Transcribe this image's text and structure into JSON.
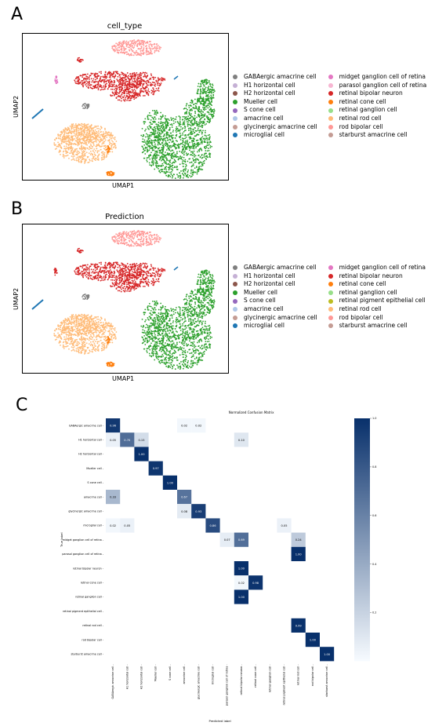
{
  "panels": {
    "a": {
      "letter": "A",
      "title": "cell_type",
      "xlabel": "UMAP1",
      "ylabel": "UMAP2"
    },
    "b": {
      "letter": "B",
      "title": "Prediction",
      "xlabel": "UMAP1",
      "ylabel": "UMAP2"
    },
    "c": {
      "letter": "C"
    }
  },
  "legend_a": [
    {
      "label": "GABAergic amacrine cell",
      "color": "#7f7f7f"
    },
    {
      "label": "H1 horizontal cell",
      "color": "#c5b0d5"
    },
    {
      "label": "H2 horizontal cell",
      "color": "#8c564b"
    },
    {
      "label": "Mueller cell",
      "color": "#2ca02c"
    },
    {
      "label": "S cone cell",
      "color": "#9467bd"
    },
    {
      "label": "amacrine cell",
      "color": "#aec7e8"
    },
    {
      "label": "glycinergic amacrine cell",
      "color": "#c49c94"
    },
    {
      "label": "microglial cell",
      "color": "#1f77b4"
    },
    {
      "label": "midget ganglion cell of retina",
      "color": "#e377c2"
    },
    {
      "label": "parasol ganglion cell of retina",
      "color": "#f7b6d2"
    },
    {
      "label": "retinal bipolar neuron",
      "color": "#d62728"
    },
    {
      "label": "retinal cone cell",
      "color": "#ff7f0e"
    },
    {
      "label": "retinal ganglion cell",
      "color": "#98df8a"
    },
    {
      "label": "retinal rod cell",
      "color": "#ffbb78"
    },
    {
      "label": "rod bipolar cell",
      "color": "#ff9896"
    },
    {
      "label": "starburst amacrine cell",
      "color": "#c49c94"
    }
  ],
  "legend_b": [
    {
      "label": "GABAergic amacrine cell",
      "color": "#7f7f7f"
    },
    {
      "label": "H1 horizontal cell",
      "color": "#c5b0d5"
    },
    {
      "label": "H2 horizontal cell",
      "color": "#8c564b"
    },
    {
      "label": "Mueller cell",
      "color": "#2ca02c"
    },
    {
      "label": "S cone cell",
      "color": "#9467bd"
    },
    {
      "label": "amacrine cell",
      "color": "#aec7e8"
    },
    {
      "label": "glycinergic amacrine cell",
      "color": "#c49c94"
    },
    {
      "label": "microglial cell",
      "color": "#1f77b4"
    },
    {
      "label": "midget ganglion cell of retina",
      "color": "#e377c2"
    },
    {
      "label": "retinal bipolar neuron",
      "color": "#d62728"
    },
    {
      "label": "retinal cone cell",
      "color": "#ff7f0e"
    },
    {
      "label": "retinal ganglion cell",
      "color": "#98df8a"
    },
    {
      "label": "retinal pigment epithelial cell",
      "color": "#bcbd22"
    },
    {
      "label": "retinal rod cell",
      "color": "#ffbb78"
    },
    {
      "label": "rod bipolar cell",
      "color": "#ff9896"
    },
    {
      "label": "starburst amacrine cell",
      "color": "#c49c94"
    }
  ],
  "chart_data": {
    "type": "heatmap",
    "title": "Normalized Confusion Matrix",
    "xlabel": "Predicted label",
    "ylabel": "True label",
    "colorbar_ticks": [
      "0.2",
      "0.4",
      "0.6",
      "0.8",
      "1.0"
    ],
    "colorbar_range": [
      0,
      1
    ],
    "true_labels": [
      "GABAergic amacrine cell",
      "H1 horizontal cell",
      "H2 horizontal cell",
      "Mueller cell",
      "S cone cell",
      "amacrine cell",
      "glycinergic amacrine cell",
      "microglial cell",
      "midget ganglion cell of retina",
      "parasol ganglion cell of retina",
      "retinal bipolar neuron",
      "retinal cone cell",
      "retinal ganglion cell",
      "retinal pigment epithelial cell",
      "retinal rod cell",
      "rod bipolar cell",
      "starburst amacrine cell"
    ],
    "predicted_labels": [
      "GABAergic amacrine cell",
      "H1 horizontal cell",
      "H2 horizontal cell",
      "Mueller cell",
      "S cone cell",
      "amacrine cell",
      "glycinergic amacrine cell",
      "microglial cell",
      "parasol ganglion cell of retina",
      "retinal bipolar neuron",
      "retinal cone cell",
      "retinal ganglion cell",
      "retinal pigment epithelial cell",
      "retinal rod cell",
      "rod bipolar cell",
      "starburst amacrine cell"
    ],
    "cells": [
      {
        "row": 0,
        "col": 0,
        "value": 0.96,
        "label": "0.96"
      },
      {
        "row": 0,
        "col": 5,
        "value": 0.02,
        "label": "0.02"
      },
      {
        "row": 0,
        "col": 6,
        "value": 0.02,
        "label": "0.02"
      },
      {
        "row": 1,
        "col": 0,
        "value": 0.05,
        "label": "0.05"
      },
      {
        "row": 1,
        "col": 1,
        "value": 0.7,
        "label": "0.70"
      },
      {
        "row": 1,
        "col": 2,
        "value": 0.15,
        "label": "0.15"
      },
      {
        "row": 1,
        "col": 9,
        "value": 0.1,
        "label": "0.10"
      },
      {
        "row": 2,
        "col": 2,
        "value": 1.0,
        "label": "1.00"
      },
      {
        "row": 3,
        "col": 3,
        "value": 0.97,
        "label": "0.97"
      },
      {
        "row": 4,
        "col": 4,
        "value": 1.0,
        "label": "1.00"
      },
      {
        "row": 5,
        "col": 0,
        "value": 0.33,
        "label": "0.33"
      },
      {
        "row": 5,
        "col": 5,
        "value": 0.67,
        "label": "0.67"
      },
      {
        "row": 6,
        "col": 5,
        "value": 0.08,
        "label": "0.08"
      },
      {
        "row": 6,
        "col": 6,
        "value": 0.93,
        "label": "0.93"
      },
      {
        "row": 7,
        "col": 0,
        "value": 0.02,
        "label": "0.02"
      },
      {
        "row": 7,
        "col": 1,
        "value": 0.05,
        "label": "0.05"
      },
      {
        "row": 7,
        "col": 7,
        "value": 0.86,
        "label": "0.86"
      },
      {
        "row": 7,
        "col": 12,
        "value": 0.05,
        "label": "0.05"
      },
      {
        "row": 8,
        "col": 8,
        "value": 0.07,
        "label": "0.07"
      },
      {
        "row": 8,
        "col": 9,
        "value": 0.69,
        "label": "0.69"
      },
      {
        "row": 8,
        "col": 13,
        "value": 0.24,
        "label": "0.24"
      },
      {
        "row": 9,
        "col": 13,
        "value": 1.0,
        "label": "1.00"
      },
      {
        "row": 10,
        "col": 9,
        "value": 1.0,
        "label": "1.00"
      },
      {
        "row": 11,
        "col": 9,
        "value": 0.02,
        "label": "0.02"
      },
      {
        "row": 11,
        "col": 10,
        "value": 0.98,
        "label": "0.98"
      },
      {
        "row": 12,
        "col": 9,
        "value": 1.0,
        "label": "1.00"
      },
      {
        "row": 14,
        "col": 13,
        "value": 0.99,
        "label": "0.99"
      },
      {
        "row": 15,
        "col": 14,
        "value": 1.0,
        "label": "1.00"
      },
      {
        "row": 16,
        "col": 15,
        "value": 1.0,
        "label": "1.00"
      }
    ]
  }
}
